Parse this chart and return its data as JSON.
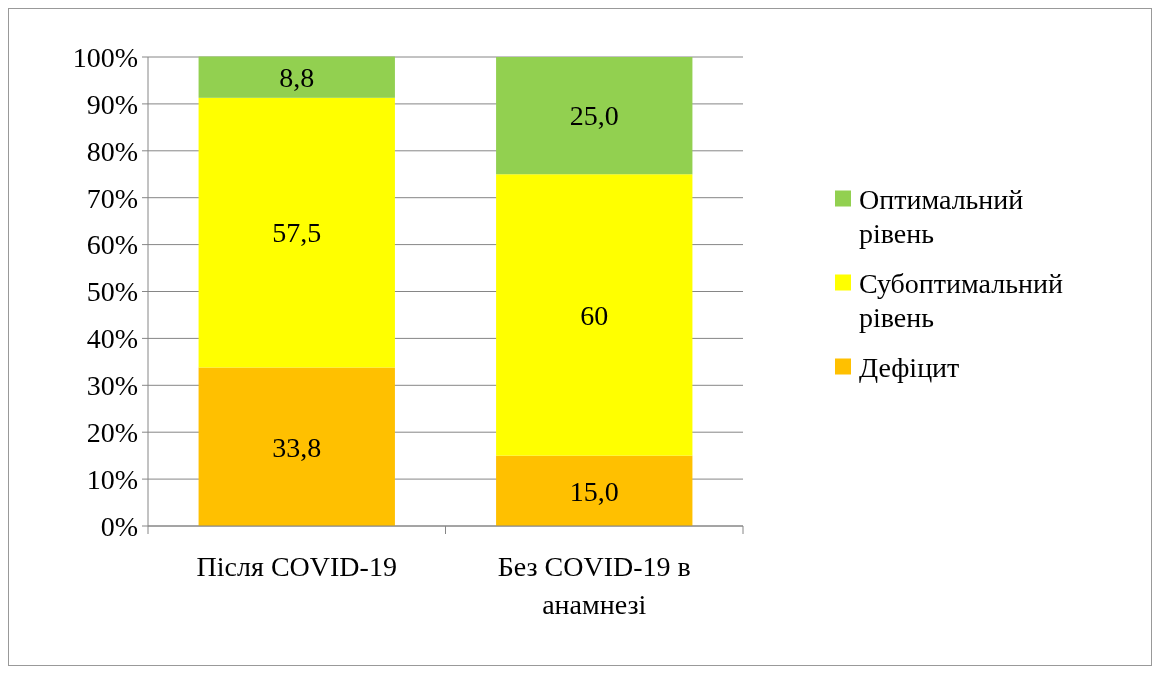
{
  "chart_data": {
    "type": "bar",
    "stacked": true,
    "categories": [
      "Після COVID-19",
      "Без COVID-19 в анамнезі"
    ],
    "series": [
      {
        "name": "Дефіцит",
        "color": "#ffc000",
        "values": [
          33.8,
          15.0
        ],
        "value_labels": [
          "33,8",
          "15,0"
        ]
      },
      {
        "name": "Субоптимальний рівень",
        "color": "#ffff00",
        "values": [
          57.5,
          60
        ],
        "value_labels": [
          "57,5",
          "60"
        ]
      },
      {
        "name": "Оптимальний рівень",
        "color": "#92d050",
        "values": [
          8.8,
          25.0
        ],
        "value_labels": [
          "8,8",
          "25,0"
        ]
      }
    ],
    "ylim": [
      0,
      100
    ],
    "yticks": [
      {
        "value": 0,
        "label": "0%"
      },
      {
        "value": 10,
        "label": "10%"
      },
      {
        "value": 20,
        "label": "20%"
      },
      {
        "value": 30,
        "label": "30%"
      },
      {
        "value": 40,
        "label": "40%"
      },
      {
        "value": 50,
        "label": "50%"
      },
      {
        "value": 60,
        "label": "60%"
      },
      {
        "value": 70,
        "label": "70%"
      },
      {
        "value": 80,
        "label": "80%"
      },
      {
        "value": 90,
        "label": "90%"
      },
      {
        "value": 100,
        "label": "100%"
      }
    ],
    "grid": "y",
    "legend": "right"
  }
}
